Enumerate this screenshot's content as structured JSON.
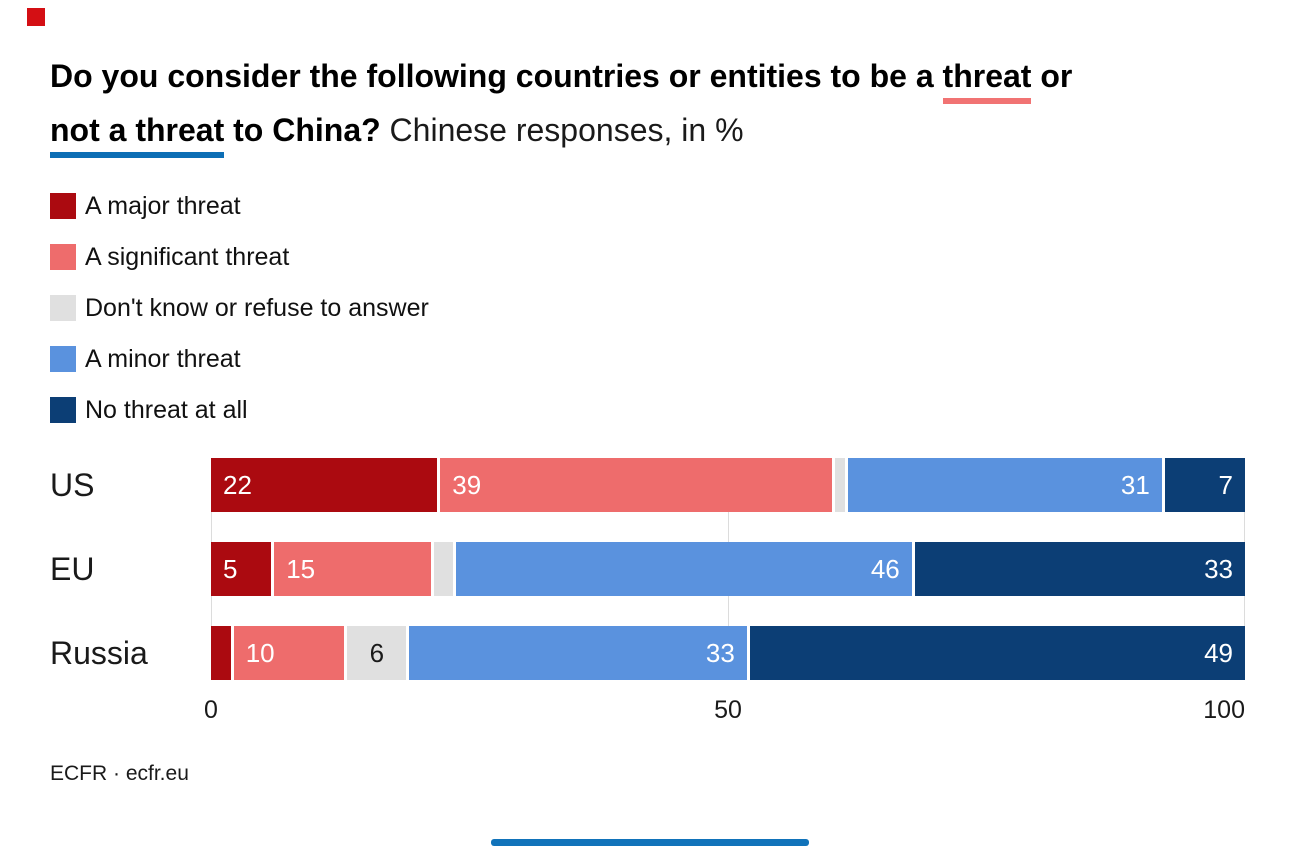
{
  "branding": {
    "logo_square_color": "#d40f14",
    "bottom_bar_color": "#1173ba"
  },
  "header": {
    "title_part1": "Do you consider the following countries or entities to be a ",
    "title_underlined_red": "threat",
    "title_part2": " or",
    "title_underlined_blue": "not a threat",
    "title_part3": " to China? ",
    "subtitle": "Chinese responses, in %",
    "underline_red_color": "#f17373",
    "underline_blue_color": "#0d6eb5"
  },
  "chart_data": {
    "type": "bar",
    "orientation": "horizontal",
    "stacked": true,
    "unit": "%",
    "title": "Do you consider the following countries or entities to be a threat or not a threat to China?",
    "subtitle": "Chinese responses, in %",
    "categories": [
      "US",
      "EU",
      "Russia"
    ],
    "series": [
      {
        "name": "A major threat",
        "color": "#ab0a10",
        "values": [
          22,
          5,
          2
        ],
        "display_labels": [
          "22",
          "5",
          ""
        ],
        "label_align": "left",
        "label_color": "#ffffff"
      },
      {
        "name": "A significant threat",
        "color": "#ee6c6c",
        "values": [
          39,
          15,
          10
        ],
        "display_labels": [
          "39",
          "15",
          "10"
        ],
        "label_align": "left",
        "label_color": "#ffffff"
      },
      {
        "name": "Don't know or refuse to answer",
        "color": "#e0e0e0",
        "values": [
          1,
          2,
          6
        ],
        "display_labels": [
          "",
          "",
          "6"
        ],
        "label_align": "center",
        "label_color": "#1a1a1a"
      },
      {
        "name": "A minor threat",
        "color": "#5a92de",
        "values": [
          31,
          46,
          33
        ],
        "display_labels": [
          "31",
          "46",
          "33"
        ],
        "label_align": "right",
        "label_color": "#ffffff"
      },
      {
        "name": "No threat at all",
        "color": "#0c3e75",
        "values": [
          7,
          33,
          49
        ],
        "display_labels": [
          "7",
          "33",
          "49"
        ],
        "label_align": "right",
        "label_color": "#ffffff"
      }
    ],
    "xlim": [
      0,
      100
    ],
    "x_ticks": [
      0,
      50,
      100
    ],
    "gridlines": true,
    "gridline_color": "#dcdcdc",
    "legend_position": "top-left"
  },
  "footer": {
    "attribution": "ECFR · ecfr.eu"
  }
}
